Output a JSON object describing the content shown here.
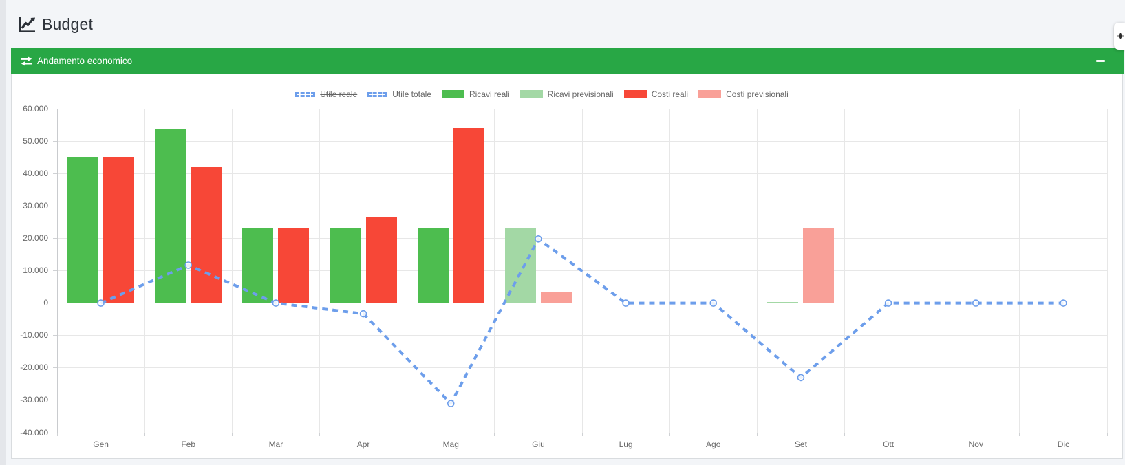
{
  "page": {
    "title": "Budget"
  },
  "panel": {
    "title": "Andamento economico"
  },
  "colors": {
    "header_green": "#28a745",
    "line_blue": "#6d9eeb",
    "bar_green": "#4dbd4f",
    "bar_light_green": "#a3d8a5",
    "bar_red": "#f74737",
    "bar_light_red": "#f9a098"
  },
  "chart_data": {
    "type": "bar",
    "title": "",
    "xlabel": "",
    "ylabel": "",
    "categories": [
      "Gen",
      "Feb",
      "Mar",
      "Apr",
      "Mag",
      "Giu",
      "Lug",
      "Ago",
      "Set",
      "Ott",
      "Nov",
      "Dic"
    ],
    "series": [
      {
        "name": "Utile reale",
        "type": "line",
        "hidden": true,
        "color": "#6d9eeb"
      },
      {
        "name": "Utile totale",
        "type": "line",
        "hidden": false,
        "color": "#6d9eeb",
        "values": [
          0,
          11700,
          0,
          -3300,
          -31000,
          19800,
          0,
          0,
          -23000,
          0,
          0,
          0
        ]
      },
      {
        "name": "Ricavi reali",
        "type": "bar",
        "slot": "ricavi",
        "color": "#4dbd4f",
        "values": [
          45200,
          53700,
          23100,
          23100,
          23100,
          0,
          0,
          0,
          0,
          0,
          0,
          0
        ]
      },
      {
        "name": "Ricavi previsionali",
        "type": "bar",
        "slot": "ricavi",
        "color": "#a3d8a5",
        "values": [
          0,
          0,
          0,
          0,
          0,
          23200,
          0,
          0,
          300,
          0,
          0,
          0
        ]
      },
      {
        "name": "Costi reali",
        "type": "bar",
        "slot": "costi",
        "color": "#f74737",
        "values": [
          45200,
          42000,
          23100,
          26400,
          54100,
          0,
          0,
          0,
          0,
          0,
          0,
          0
        ]
      },
      {
        "name": "Costi previsionali",
        "type": "bar",
        "slot": "costi",
        "color": "#f9a098",
        "values": [
          0,
          0,
          0,
          0,
          0,
          3400,
          0,
          0,
          23300,
          0,
          0,
          0
        ]
      }
    ],
    "ylim": [
      -40000,
      60000
    ],
    "ytick_step": 10000,
    "y_tick_labels": [
      "60.000",
      "50.000",
      "40.000",
      "30.000",
      "20.000",
      "10.000",
      "0",
      "-10.000",
      "-20.000",
      "-30.000",
      "-40.000"
    ],
    "grid": true,
    "legend_position": "top"
  }
}
